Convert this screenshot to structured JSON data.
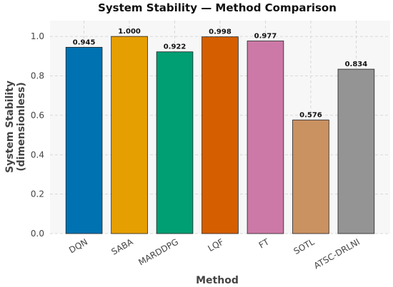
{
  "chart_data": {
    "type": "bar",
    "title": "System Stability — Method Comparison",
    "xlabel": "Method",
    "ylabel_lines": [
      "System Stability",
      "(dimensionless)"
    ],
    "categories": [
      "DQN",
      "SABA",
      "MARDDPG",
      "LQF",
      "FT",
      "SOTL",
      "ATSC-DRLNI"
    ],
    "values": [
      0.945,
      1.0,
      0.922,
      0.998,
      0.977,
      0.576,
      0.834
    ],
    "value_labels": [
      "0.945",
      "1.000",
      "0.922",
      "0.998",
      "0.977",
      "0.576",
      "0.834"
    ],
    "colors": [
      "#0072b2",
      "#e69f00",
      "#009e73",
      "#d55e00",
      "#cc79a7",
      "#ca9161",
      "#949494"
    ],
    "ylim": [
      0,
      1.08
    ],
    "yticks": [
      0.0,
      0.2,
      0.4,
      0.6,
      0.8,
      1.0
    ],
    "ytick_labels": [
      "0.0",
      "0.2",
      "0.4",
      "0.6",
      "0.8",
      "1.0"
    ],
    "grid": true,
    "legend": "none",
    "background": "#f7f7f7",
    "bar_edge_color": "#222222"
  }
}
